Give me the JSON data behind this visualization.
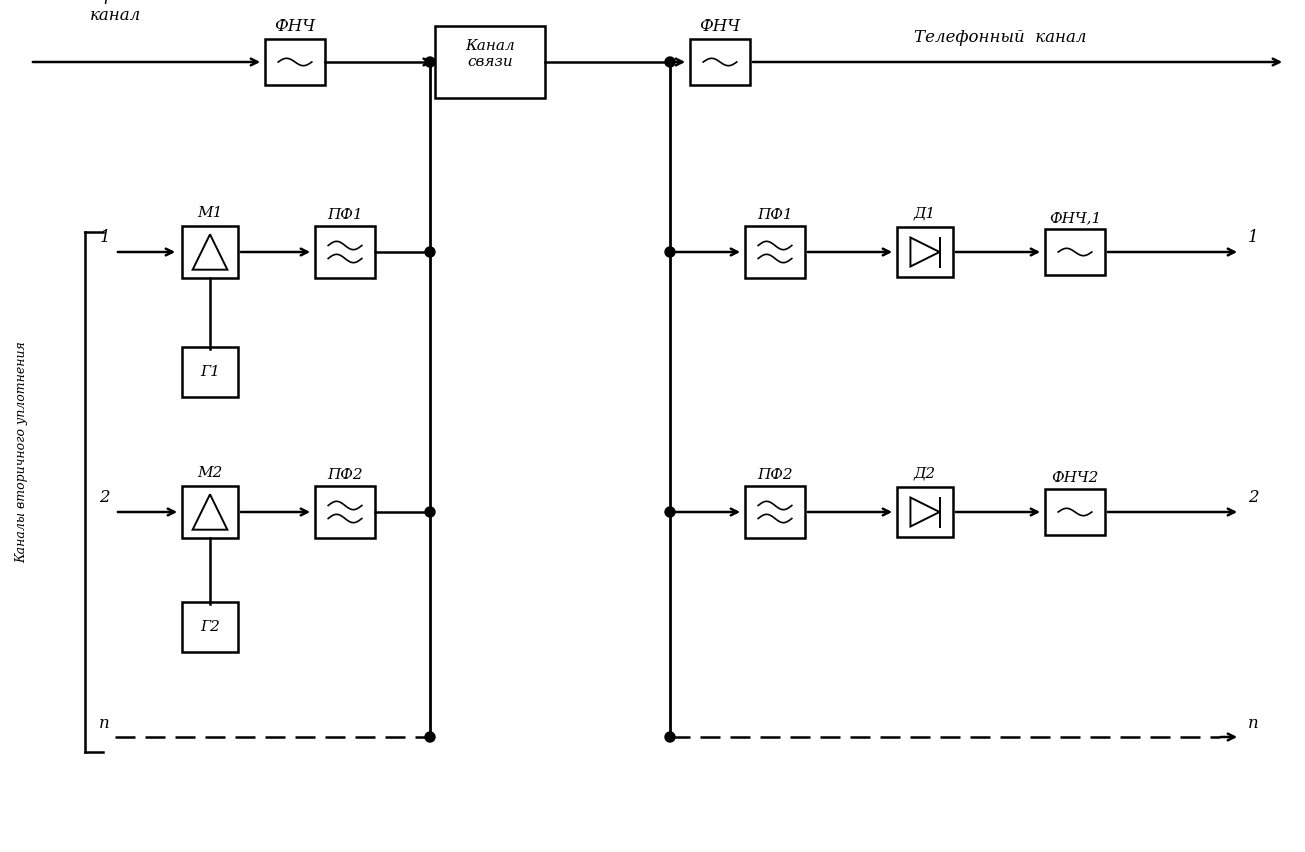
{
  "figsize": [
    13.05,
    8.52
  ],
  "dpi": 100,
  "bg_color": "#ffffff",
  "elements": {
    "phone_left_label": "Телефонный\nканал",
    "phone_right_label": "Телефонный  канал",
    "kanal_label": "Канал\nсвязи",
    "side_label": "Каналы вторичного уплотнения",
    "fnch_top_left_label": "ФНЧ",
    "fnch_top_right_label": "ФНЧ",
    "m1_label": "М1",
    "m2_label": "М2",
    "pf1_left_label": "ПФ1",
    "pf2_left_label": "ПФ2",
    "g1_label": "Г1",
    "g2_label": "Г2",
    "ch1_left_label": "1",
    "ch2_left_label": "2",
    "chn_left_label": "п",
    "pf1_right_label": "ПФ1",
    "pf2_right_label": "ПФ2",
    "d1_label": "Д1",
    "d2_label": "Д2",
    "fnch1_label": "ФНЧ,1",
    "fnch2_label": "ФНЧ2",
    "ch1_right_label": "1",
    "ch2_right_label": "2",
    "chn_right_label": "п"
  }
}
